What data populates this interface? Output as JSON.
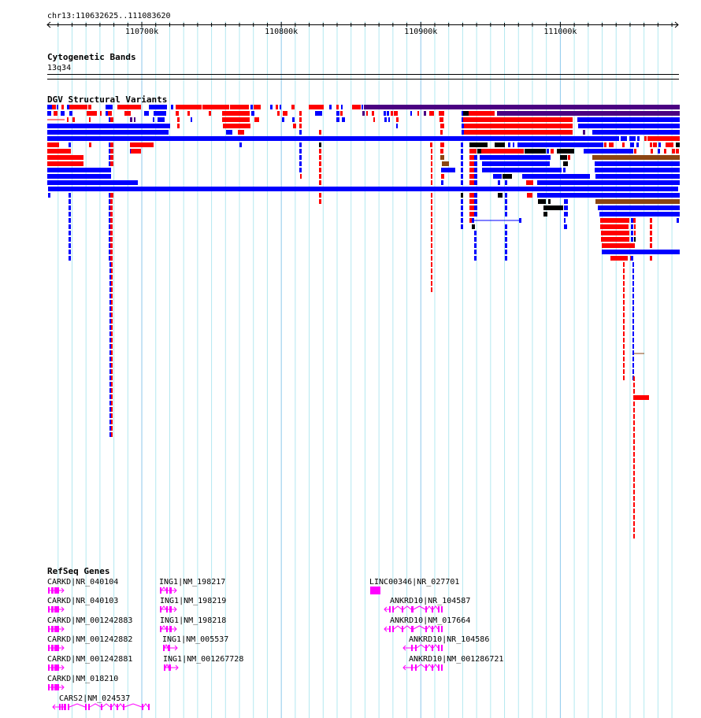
{
  "ruler": {
    "region": "chr13:110632625..111083620",
    "start": 110632625,
    "end": 111083620,
    "tick_labels": [
      {
        "label": "110700k",
        "pos": 110700000
      },
      {
        "label": "110800k",
        "pos": 110800000
      },
      {
        "label": "110900k",
        "pos": 110900000
      },
      {
        "label": "111000k",
        "pos": 111000000
      }
    ]
  },
  "tracks": {
    "cytoband": {
      "title": "Cytogenetic Bands",
      "band": "13q34"
    },
    "dgv": {
      "title": "DGV Structural Variants"
    },
    "refseq": {
      "title": "RefSeq Genes",
      "genes": [
        {
          "label": "CARKD|NR_040104",
          "glyph": "carkd"
        },
        {
          "label": "CARKD|NR_040103",
          "glyph": "carkd"
        },
        {
          "label": "CARKD|NM_001242883",
          "glyph": "carkd"
        },
        {
          "label": "CARKD|NM_001242882",
          "glyph": "carkd"
        },
        {
          "label": "CARKD|NM_001242881",
          "glyph": "carkd"
        },
        {
          "label": "CARKD|NM_018210",
          "glyph": "carkd"
        },
        {
          "label": "CARS2|NM_024537",
          "glyph": "cars2"
        },
        {
          "label": "ING1|NM_198217",
          "glyph": "ing1"
        },
        {
          "label": "ING1|NM_198219",
          "glyph": "ing1"
        },
        {
          "label": "ING1|NM_198218",
          "glyph": "ing1"
        },
        {
          "label": "ING1|NM_005537",
          "glyph": "ing1b"
        },
        {
          "label": "ING1|NM_001267728",
          "glyph": "ing1b"
        },
        {
          "label": "LINC00346|NR_027701",
          "glyph": "box"
        },
        {
          "label": "ANKRD10|NR_104587",
          "glyph": "ankrd"
        },
        {
          "label": "ANKRD10|NM_017664",
          "glyph": "ankrd"
        },
        {
          "label": "ANKRD10|NR_104586",
          "glyph": "ankrd2"
        },
        {
          "label": "ANKRD10|NM_001286721",
          "glyph": "ankrd2"
        }
      ]
    }
  },
  "colors": {
    "gain": "#ff0000",
    "loss": "#0000ff",
    "complex": "#4b0082",
    "inversion": "#000000",
    "other": "#8b4513",
    "gene": "#ff00ff",
    "grid_minor": "#b3e8f0",
    "grid_major": "#8cc8ec"
  }
}
